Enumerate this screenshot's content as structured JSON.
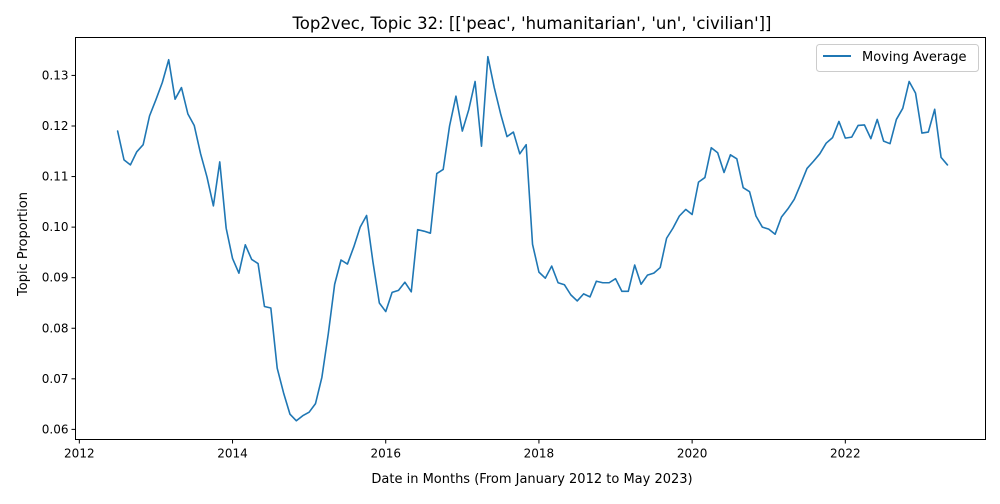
{
  "chart_data": {
    "type": "line",
    "title": "Top2vec, Topic 32: [['peac', 'humanitarian', 'un', 'civilian']]",
    "xlabel": "Date in Months (From January 2012 to May 2023)",
    "ylabel": "Topic Proportion",
    "x_ticks": [
      2012,
      2014,
      2016,
      2018,
      2020,
      2022
    ],
    "y_ticks": [
      0.06,
      0.07,
      0.08,
      0.09,
      0.1,
      0.11,
      0.12,
      0.13
    ],
    "y_tick_labels": [
      "0.06",
      "0.07",
      "0.08",
      "0.09",
      "0.10",
      "0.11",
      "0.12",
      "0.13"
    ],
    "xlim": [
      2011.95,
      2023.83
    ],
    "ylim": [
      0.058,
      0.1375
    ],
    "grid": false,
    "legend_position": "top-right",
    "color": "#1f77b4",
    "series": [
      {
        "name": "Moving Average",
        "x": [
          "2012-07",
          "2012-08",
          "2012-09",
          "2012-10",
          "2012-11",
          "2012-12",
          "2013-01",
          "2013-02",
          "2013-03",
          "2013-04",
          "2013-05",
          "2013-06",
          "2013-07",
          "2013-08",
          "2013-09",
          "2013-10",
          "2013-11",
          "2013-12",
          "2014-01",
          "2014-02",
          "2014-03",
          "2014-04",
          "2014-05",
          "2014-06",
          "2014-07",
          "2014-08",
          "2014-09",
          "2014-10",
          "2014-11",
          "2014-12",
          "2015-01",
          "2015-02",
          "2015-03",
          "2015-04",
          "2015-05",
          "2015-06",
          "2015-07",
          "2015-08",
          "2015-09",
          "2015-10",
          "2015-11",
          "2015-12",
          "2016-01",
          "2016-02",
          "2016-03",
          "2016-04",
          "2016-05",
          "2016-06",
          "2016-07",
          "2016-08",
          "2016-09",
          "2016-10",
          "2016-11",
          "2016-12",
          "2017-01",
          "2017-02",
          "2017-03",
          "2017-04",
          "2017-05",
          "2017-06",
          "2017-07",
          "2017-08",
          "2017-09",
          "2017-10",
          "2017-11",
          "2017-12",
          "2018-01",
          "2018-02",
          "2018-03",
          "2018-04",
          "2018-05",
          "2018-06",
          "2018-07",
          "2018-08",
          "2018-09",
          "2018-10",
          "2018-11",
          "2018-12",
          "2019-01",
          "2019-02",
          "2019-03",
          "2019-04",
          "2019-05",
          "2019-06",
          "2019-07",
          "2019-08",
          "2019-09",
          "2019-10",
          "2019-11",
          "2019-12",
          "2020-01",
          "2020-02",
          "2020-03",
          "2020-04",
          "2020-05",
          "2020-06",
          "2020-07",
          "2020-08",
          "2020-09",
          "2020-10",
          "2020-11",
          "2020-12",
          "2021-01",
          "2021-02",
          "2021-03",
          "2021-04",
          "2021-05",
          "2021-06",
          "2021-07",
          "2021-08",
          "2021-09",
          "2021-10",
          "2021-11",
          "2021-12",
          "2022-01",
          "2022-02",
          "2022-03",
          "2022-04",
          "2022-05",
          "2022-06",
          "2022-07",
          "2022-08",
          "2022-09",
          "2022-10",
          "2022-11",
          "2022-12",
          "2023-01",
          "2023-02",
          "2023-03",
          "2023-04",
          "2023-05"
        ],
        "values": [
          0.119,
          0.1133,
          0.1123,
          0.1149,
          0.1163,
          0.122,
          0.1252,
          0.1286,
          0.1331,
          0.1253,
          0.1276,
          0.1224,
          0.1201,
          0.1145,
          0.1099,
          0.1042,
          0.1129,
          0.0998,
          0.0938,
          0.0909,
          0.0965,
          0.0936,
          0.0928,
          0.0843,
          0.084,
          0.0721,
          0.0672,
          0.063,
          0.0617,
          0.0627,
          0.0634,
          0.0651,
          0.0703,
          0.0789,
          0.0887,
          0.0935,
          0.0927,
          0.0961,
          0.1,
          0.1023,
          0.0931,
          0.085,
          0.0833,
          0.0871,
          0.0875,
          0.0891,
          0.0872,
          0.0995,
          0.0992,
          0.0988,
          0.1106,
          0.1114,
          0.12,
          0.1259,
          0.119,
          0.1232,
          0.1288,
          0.116,
          0.1337,
          0.1276,
          0.1224,
          0.1179,
          0.1188,
          0.1145,
          0.1163,
          0.0966,
          0.0911,
          0.0899,
          0.0923,
          0.089,
          0.0886,
          0.0866,
          0.0854,
          0.0868,
          0.0862,
          0.0893,
          0.089,
          0.089,
          0.0898,
          0.0873,
          0.0873,
          0.0925,
          0.0887,
          0.0905,
          0.0909,
          0.092,
          0.0978,
          0.0998,
          0.1022,
          0.1035,
          0.1025,
          0.1089,
          0.1098,
          0.1157,
          0.1147,
          0.1108,
          0.1143,
          0.1135,
          0.1078,
          0.107,
          0.1022,
          0.1,
          0.0996,
          0.0986,
          0.102,
          0.1036,
          0.1055,
          0.1085,
          0.1116,
          0.113,
          0.1145,
          0.1166,
          0.1177,
          0.1209,
          0.1176,
          0.1178,
          0.1201,
          0.1202,
          0.1175,
          0.1213,
          0.117,
          0.1165,
          0.1213,
          0.1235,
          0.1288,
          0.1265,
          0.1186,
          0.1188,
          0.1233,
          0.1138,
          0.1123
        ]
      }
    ]
  }
}
